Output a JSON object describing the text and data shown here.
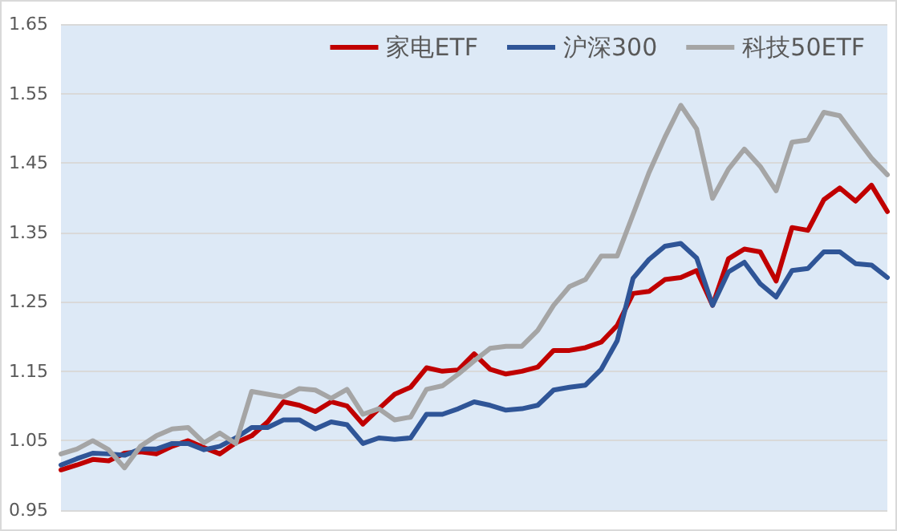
{
  "chart_data": {
    "type": "line",
    "categories": [
      null,
      null,
      null,
      null,
      null,
      null,
      null,
      null,
      null,
      null,
      null,
      null,
      null,
      null,
      null,
      null,
      null,
      null,
      null,
      null,
      null,
      null,
      null,
      null,
      null,
      null,
      null,
      null,
      null,
      null,
      null,
      null,
      null,
      null,
      null,
      null,
      null,
      null,
      null,
      null,
      null,
      null,
      null,
      null,
      null,
      null,
      null,
      null,
      null,
      null,
      null,
      null,
      null
    ],
    "series": [
      {
        "name": "家电ETF",
        "color": "#c00000",
        "values": [
          1.008,
          1.015,
          1.023,
          1.021,
          1.032,
          1.034,
          1.031,
          1.042,
          1.05,
          1.04,
          1.031,
          1.047,
          1.057,
          1.077,
          1.106,
          1.101,
          1.092,
          1.106,
          1.1,
          1.074,
          1.096,
          1.117,
          1.127,
          1.155,
          1.15,
          1.152,
          1.175,
          1.153,
          1.146,
          1.15,
          1.156,
          1.18,
          1.18,
          1.184,
          1.192,
          1.216,
          1.262,
          1.265,
          1.282,
          1.285,
          1.295,
          1.245,
          1.312,
          1.326,
          1.322,
          1.28,
          1.357,
          1.353,
          1.397,
          1.414,
          1.395,
          1.418,
          1.38
        ]
      },
      {
        "name": "沪深300",
        "color": "#2f5597",
        "values": [
          1.015,
          1.024,
          1.032,
          1.031,
          1.029,
          1.038,
          1.038,
          1.046,
          1.046,
          1.037,
          1.042,
          1.054,
          1.069,
          1.069,
          1.08,
          1.08,
          1.067,
          1.077,
          1.073,
          1.046,
          1.054,
          1.052,
          1.054,
          1.088,
          1.088,
          1.096,
          1.106,
          1.101,
          1.094,
          1.096,
          1.101,
          1.123,
          1.127,
          1.13,
          1.153,
          1.194,
          1.284,
          1.311,
          1.33,
          1.334,
          1.313,
          1.245,
          1.293,
          1.307,
          1.276,
          1.257,
          1.295,
          1.298,
          1.322,
          1.322,
          1.305,
          1.303,
          1.285
        ]
      },
      {
        "name": "科技50ETF",
        "color": "#a5a5a5",
        "values": [
          1.031,
          1.038,
          1.05,
          1.037,
          1.011,
          1.042,
          1.057,
          1.067,
          1.069,
          1.047,
          1.061,
          1.046,
          1.121,
          1.117,
          1.113,
          1.125,
          1.123,
          1.111,
          1.124,
          1.088,
          1.096,
          1.08,
          1.084,
          1.124,
          1.129,
          1.146,
          1.165,
          1.183,
          1.186,
          1.186,
          1.209,
          1.245,
          1.272,
          1.282,
          1.316,
          1.316,
          1.376,
          1.436,
          1.487,
          1.533,
          1.499,
          1.399,
          1.441,
          1.47,
          1.445,
          1.41,
          1.48,
          1.483,
          1.523,
          1.518,
          1.487,
          1.457,
          1.433
        ]
      }
    ],
    "ylim": [
      0.95,
      1.65
    ],
    "yticks": [
      0.95,
      1.05,
      1.15,
      1.25,
      1.35,
      1.45,
      1.55,
      1.65
    ],
    "grid": "y",
    "legend": "top right",
    "marker": "none",
    "line_style": "solid",
    "tick_labels": "y"
  }
}
